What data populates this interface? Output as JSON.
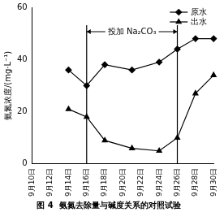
{
  "chart_data": {
    "type": "line",
    "title": "图 4  氨氮去除量与碱度关系的对照试验",
    "y_label": "氨氮浓度/(mg·L⁻¹)",
    "categories": [
      "9月10日",
      null,
      "9月12日",
      null,
      "9月14日",
      null,
      "9月16日",
      null,
      "9月18日",
      null,
      "9月20日",
      null,
      "9月22日",
      null,
      "9月24日",
      null,
      "9月26日",
      null,
      "9月28日",
      null,
      "9月30日"
    ],
    "series": [
      {
        "name": "原水",
        "color": "#000000",
        "marker": "diamond",
        "values": [
          null,
          null,
          null,
          null,
          36,
          null,
          30,
          null,
          38,
          null,
          null,
          36,
          null,
          null,
          39,
          null,
          44,
          null,
          48,
          null,
          48
        ]
      },
      {
        "name": "出水",
        "color": "#000000",
        "marker": "triangle",
        "values": [
          null,
          null,
          null,
          null,
          21,
          null,
          18,
          null,
          9,
          null,
          null,
          6,
          null,
          null,
          5,
          null,
          10,
          null,
          27,
          null,
          34
        ]
      }
    ],
    "ylim": [
      0,
      60
    ],
    "yticks": [
      0,
      20,
      40,
      60
    ],
    "grid": false,
    "legend": "upper right",
    "annotations": [
      {
        "text": "投加 Na₂CO₃",
        "x_start": "9月16日",
        "x_end": "9月26日"
      }
    ]
  }
}
